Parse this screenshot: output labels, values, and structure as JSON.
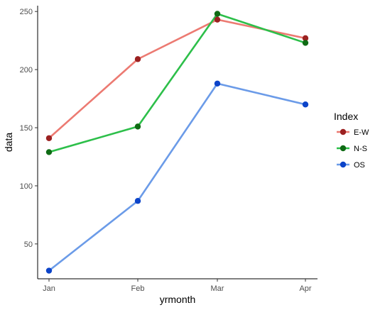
{
  "chart_data": {
    "type": "line",
    "xlabel": "yrmonth",
    "ylabel": "data",
    "categories": [
      "Jan",
      "Feb",
      "Mar",
      "Apr"
    ],
    "ylim": [
      20,
      255
    ],
    "yticks": [
      50,
      100,
      150,
      200,
      250
    ],
    "grid": false,
    "legend": {
      "title": "Index",
      "placement": "right"
    },
    "series": [
      {
        "name": "E-W",
        "values": [
          141,
          209,
          243,
          227
        ],
        "line_color": "#ec7a72",
        "point_color": "#9b2121"
      },
      {
        "name": "N-S",
        "values": [
          129,
          151,
          248,
          223
        ],
        "line_color": "#2dbf4a",
        "point_color": "#0f6b14"
      },
      {
        "name": "OS",
        "values": [
          27,
          87,
          188,
          170
        ],
        "line_color": "#6b9be8",
        "point_color": "#0c44c9"
      }
    ]
  }
}
